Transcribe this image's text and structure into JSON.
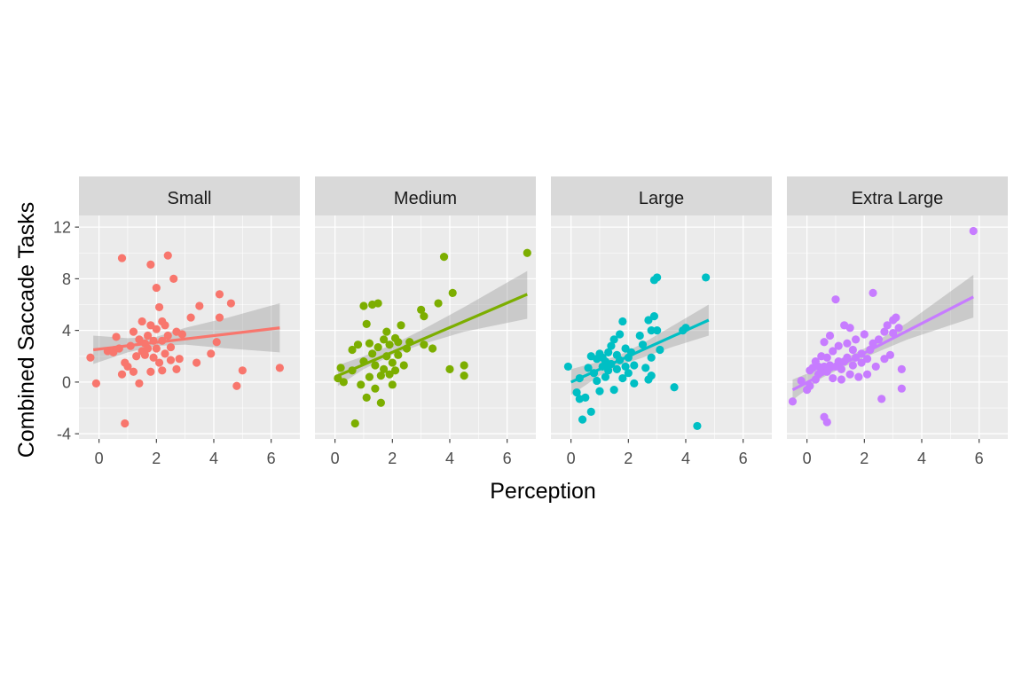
{
  "chart_data": {
    "type": "scatter",
    "xlabel": "Perception",
    "ylabel": "Combined Saccade Tasks",
    "xlim": [
      -0.7,
      7.0
    ],
    "ylim": [
      -4.4,
      12.9
    ],
    "x_ticks": [
      0,
      2,
      4,
      6
    ],
    "y_ticks": [
      -4,
      0,
      4,
      8,
      12
    ],
    "grid": true,
    "panels": [
      {
        "label": "Small",
        "color": "#F8766D",
        "fit": {
          "x0": -0.2,
          "y0": 2.5,
          "x1": 6.3,
          "y1": 4.2,
          "band": [
            [
              -0.2,
              1.4,
              3.6
            ],
            [
              1.0,
              2.3,
              3.4
            ],
            [
              2.0,
              2.8,
              3.5
            ],
            [
              3.0,
              2.9,
              4.2
            ],
            [
              4.5,
              2.6,
              5.0
            ],
            [
              6.3,
              2.3,
              6.1
            ]
          ]
        },
        "points": [
          [
            -0.3,
            1.9
          ],
          [
            -0.1,
            -0.1
          ],
          [
            0.3,
            2.4
          ],
          [
            0.5,
            2.3
          ],
          [
            0.6,
            3.5
          ],
          [
            0.7,
            2.6
          ],
          [
            0.8,
            9.6
          ],
          [
            0.8,
            0.6
          ],
          [
            0.9,
            -3.2
          ],
          [
            0.9,
            1.5
          ],
          [
            1.0,
            1.2
          ],
          [
            1.1,
            2.8
          ],
          [
            1.2,
            3.9
          ],
          [
            1.2,
            0.8
          ],
          [
            1.3,
            2.0
          ],
          [
            1.4,
            -0.1
          ],
          [
            1.4,
            3.3
          ],
          [
            1.5,
            2.4
          ],
          [
            1.5,
            4.7
          ],
          [
            1.6,
            2.1
          ],
          [
            1.6,
            3.0
          ],
          [
            1.7,
            3.6
          ],
          [
            1.7,
            2.6
          ],
          [
            1.8,
            9.1
          ],
          [
            1.8,
            4.4
          ],
          [
            1.8,
            0.8
          ],
          [
            1.9,
            3.2
          ],
          [
            1.9,
            1.9
          ],
          [
            2.0,
            4.1
          ],
          [
            2.0,
            2.6
          ],
          [
            2.0,
            7.3
          ],
          [
            2.1,
            5.8
          ],
          [
            2.1,
            1.5
          ],
          [
            2.2,
            4.7
          ],
          [
            2.2,
            3.2
          ],
          [
            2.2,
            0.9
          ],
          [
            2.3,
            2.2
          ],
          [
            2.3,
            4.4
          ],
          [
            2.4,
            9.8
          ],
          [
            2.4,
            3.6
          ],
          [
            2.5,
            1.7
          ],
          [
            2.5,
            2.7
          ],
          [
            2.6,
            8.0
          ],
          [
            2.7,
            3.9
          ],
          [
            2.7,
            1.0
          ],
          [
            2.8,
            1.8
          ],
          [
            2.9,
            3.7
          ],
          [
            3.2,
            5.0
          ],
          [
            3.4,
            1.5
          ],
          [
            3.5,
            5.9
          ],
          [
            3.9,
            2.2
          ],
          [
            4.1,
            3.1
          ],
          [
            4.2,
            6.8
          ],
          [
            4.2,
            5.0
          ],
          [
            4.6,
            6.1
          ],
          [
            4.8,
            -0.3
          ],
          [
            5.0,
            0.9
          ],
          [
            6.3,
            1.1
          ]
        ]
      },
      {
        "label": "Medium",
        "color": "#7CAE00",
        "fit": {
          "x0": 0.1,
          "y0": 0.5,
          "x1": 6.7,
          "y1": 6.8,
          "band": [
            [
              0.1,
              -0.3,
              1.3
            ],
            [
              1.0,
              1.0,
              2.0
            ],
            [
              2.0,
              2.1,
              2.9
            ],
            [
              3.0,
              2.9,
              4.0
            ],
            [
              4.5,
              3.9,
              5.8
            ],
            [
              6.7,
              4.9,
              8.6
            ]
          ]
        },
        "points": [
          [
            0.1,
            0.3
          ],
          [
            0.2,
            1.1
          ],
          [
            0.3,
            0.0
          ],
          [
            0.6,
            2.5
          ],
          [
            0.6,
            0.9
          ],
          [
            0.7,
            -3.2
          ],
          [
            0.8,
            2.9
          ],
          [
            0.9,
            -0.2
          ],
          [
            1.0,
            5.9
          ],
          [
            1.0,
            1.6
          ],
          [
            1.1,
            -1.2
          ],
          [
            1.1,
            4.5
          ],
          [
            1.2,
            3.0
          ],
          [
            1.2,
            0.4
          ],
          [
            1.3,
            6.0
          ],
          [
            1.3,
            2.2
          ],
          [
            1.4,
            -0.5
          ],
          [
            1.4,
            1.3
          ],
          [
            1.5,
            6.1
          ],
          [
            1.5,
            2.7
          ],
          [
            1.6,
            0.5
          ],
          [
            1.6,
            -1.6
          ],
          [
            1.7,
            3.3
          ],
          [
            1.7,
            1.0
          ],
          [
            1.8,
            2.0
          ],
          [
            1.8,
            3.9
          ],
          [
            1.9,
            0.6
          ],
          [
            1.9,
            2.9
          ],
          [
            2.0,
            1.5
          ],
          [
            2.0,
            -0.2
          ],
          [
            2.1,
            3.4
          ],
          [
            2.1,
            0.9
          ],
          [
            2.2,
            2.1
          ],
          [
            2.2,
            3.1
          ],
          [
            2.3,
            4.4
          ],
          [
            2.4,
            1.3
          ],
          [
            2.5,
            2.6
          ],
          [
            2.6,
            3.1
          ],
          [
            3.0,
            5.6
          ],
          [
            3.1,
            2.9
          ],
          [
            3.1,
            5.1
          ],
          [
            3.4,
            2.6
          ],
          [
            3.6,
            6.1
          ],
          [
            3.8,
            9.7
          ],
          [
            4.0,
            1.0
          ],
          [
            4.1,
            6.9
          ],
          [
            4.5,
            0.5
          ],
          [
            4.5,
            1.3
          ],
          [
            6.7,
            10.0
          ]
        ]
      },
      {
        "label": "Large",
        "color": "#00BFC4",
        "fit": {
          "x0": 0.0,
          "y0": 0.0,
          "x1": 4.8,
          "y1": 4.8,
          "band": [
            [
              0.0,
              -1.0,
              1.0
            ],
            [
              1.0,
              0.5,
              1.6
            ],
            [
              1.7,
              1.3,
              2.1
            ],
            [
              2.5,
              1.9,
              3.0
            ],
            [
              3.5,
              2.7,
              4.3
            ],
            [
              4.8,
              3.6,
              6.0
            ]
          ]
        },
        "points": [
          [
            -0.1,
            1.2
          ],
          [
            0.2,
            -0.8
          ],
          [
            0.3,
            -1.3
          ],
          [
            0.3,
            0.3
          ],
          [
            0.4,
            -2.9
          ],
          [
            0.5,
            -1.2
          ],
          [
            0.6,
            1.1
          ],
          [
            0.7,
            2.0
          ],
          [
            0.7,
            -2.3
          ],
          [
            0.8,
            0.7
          ],
          [
            0.9,
            0.1
          ],
          [
            0.9,
            1.8
          ],
          [
            1.0,
            2.2
          ],
          [
            1.0,
            -0.7
          ],
          [
            1.1,
            1.2
          ],
          [
            1.1,
            1.9
          ],
          [
            1.2,
            0.4
          ],
          [
            1.2,
            1.6
          ],
          [
            1.3,
            2.3
          ],
          [
            1.3,
            0.9
          ],
          [
            1.4,
            2.8
          ],
          [
            1.4,
            1.4
          ],
          [
            1.5,
            3.3
          ],
          [
            1.5,
            -0.6
          ],
          [
            1.6,
            2.1
          ],
          [
            1.6,
            1.0
          ],
          [
            1.7,
            3.7
          ],
          [
            1.7,
            1.7
          ],
          [
            1.8,
            0.3
          ],
          [
            1.8,
            4.7
          ],
          [
            1.9,
            2.6
          ],
          [
            1.9,
            1.2
          ],
          [
            2.0,
            1.9
          ],
          [
            2.0,
            0.7
          ],
          [
            2.1,
            2.3
          ],
          [
            2.2,
            1.3
          ],
          [
            2.2,
            -0.1
          ],
          [
            2.4,
            3.6
          ],
          [
            2.5,
            2.9
          ],
          [
            2.6,
            1.1
          ],
          [
            2.7,
            4.8
          ],
          [
            2.7,
            0.2
          ],
          [
            2.8,
            4.0
          ],
          [
            2.8,
            1.9
          ],
          [
            2.8,
            0.5
          ],
          [
            2.9,
            5.1
          ],
          [
            2.9,
            7.9
          ],
          [
            3.0,
            8.1
          ],
          [
            3.0,
            4.0
          ],
          [
            3.1,
            2.5
          ],
          [
            3.6,
            -0.4
          ],
          [
            3.9,
            4.0
          ],
          [
            4.0,
            4.2
          ],
          [
            4.4,
            -3.4
          ],
          [
            4.7,
            8.1
          ]
        ]
      },
      {
        "label": "Extra Large",
        "color": "#C77CFF",
        "fit": {
          "x0": -0.5,
          "y0": -0.6,
          "x1": 5.8,
          "y1": 6.6,
          "band": [
            [
              -0.5,
              -1.4,
              0.2
            ],
            [
              0.5,
              0.3,
              1.1
            ],
            [
              1.3,
              1.2,
              1.8
            ],
            [
              2.0,
              1.9,
              2.6
            ],
            [
              3.5,
              3.3,
              4.6
            ],
            [
              5.8,
              5.0,
              8.3
            ]
          ]
        },
        "points": [
          [
            -0.5,
            -1.5
          ],
          [
            -0.2,
            0.1
          ],
          [
            0.0,
            -0.6
          ],
          [
            0.1,
            -0.3
          ],
          [
            0.1,
            0.9
          ],
          [
            0.2,
            1.1
          ],
          [
            0.3,
            0.2
          ],
          [
            0.3,
            1.6
          ],
          [
            0.4,
            1.2
          ],
          [
            0.4,
            0.6
          ],
          [
            0.5,
            0.8
          ],
          [
            0.5,
            2.0
          ],
          [
            0.6,
            1.2
          ],
          [
            0.6,
            -2.7
          ],
          [
            0.6,
            3.1
          ],
          [
            0.7,
            1.9
          ],
          [
            0.7,
            -3.1
          ],
          [
            0.7,
            0.8
          ],
          [
            0.8,
            1.3
          ],
          [
            0.8,
            3.6
          ],
          [
            0.9,
            2.4
          ],
          [
            0.9,
            0.3
          ],
          [
            1.0,
            6.4
          ],
          [
            1.0,
            1.2
          ],
          [
            1.1,
            1.6
          ],
          [
            1.1,
            2.8
          ],
          [
            1.2,
            1.0
          ],
          [
            1.2,
            0.2
          ],
          [
            1.3,
            4.4
          ],
          [
            1.3,
            1.6
          ],
          [
            1.4,
            3.0
          ],
          [
            1.4,
            1.9
          ],
          [
            1.5,
            0.6
          ],
          [
            1.5,
            4.2
          ],
          [
            1.6,
            2.5
          ],
          [
            1.6,
            1.3
          ],
          [
            1.7,
            1.9
          ],
          [
            1.7,
            3.3
          ],
          [
            1.8,
            0.4
          ],
          [
            1.9,
            1.5
          ],
          [
            1.9,
            2.2
          ],
          [
            2.0,
            3.7
          ],
          [
            2.1,
            0.6
          ],
          [
            2.1,
            1.8
          ],
          [
            2.2,
            2.5
          ],
          [
            2.3,
            6.9
          ],
          [
            2.3,
            3.0
          ],
          [
            2.4,
            1.2
          ],
          [
            2.5,
            3.3
          ],
          [
            2.6,
            -1.3
          ],
          [
            2.7,
            3.9
          ],
          [
            2.7,
            1.8
          ],
          [
            2.8,
            4.4
          ],
          [
            2.9,
            2.1
          ],
          [
            3.0,
            4.8
          ],
          [
            3.0,
            3.8
          ],
          [
            3.1,
            5.0
          ],
          [
            3.2,
            4.2
          ],
          [
            3.3,
            1.0
          ],
          [
            3.3,
            -0.5
          ],
          [
            5.8,
            11.7
          ]
        ]
      }
    ]
  }
}
